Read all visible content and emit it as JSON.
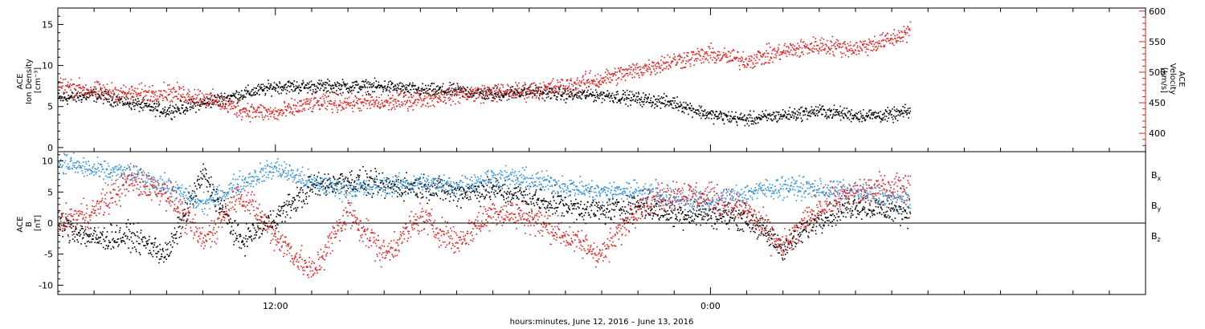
{
  "chart_data": [
    {
      "type": "scatter",
      "panel": "plasma",
      "x_unit": "hours after 00:00 June 12, 2016",
      "xlim": [
        6.0,
        36.0
      ],
      "left_axis": {
        "label_lines": [
          "ACE",
          "Ion Density",
          "[cm⁻³]"
        ],
        "ylim": [
          -0.5,
          17
        ],
        "ticks": [
          0,
          5,
          10,
          15
        ],
        "color": "#000000"
      },
      "right_axis": {
        "label_lines": [
          "ACE",
          "Velocity",
          "[km/s]"
        ],
        "ylim": [
          370,
          605
        ],
        "ticks": [
          400,
          450,
          500,
          550,
          600
        ],
        "color": "#e0201c"
      },
      "series": [
        {
          "color": "#000000",
          "axis": "left",
          "trend": [
            [
              6.0,
              6.0
            ],
            [
              7.0,
              6.5
            ],
            [
              8.0,
              5.5
            ],
            [
              9.0,
              4.5
            ],
            [
              10.0,
              5.5
            ],
            [
              11.0,
              6.5
            ],
            [
              12.0,
              7.5
            ],
            [
              13.0,
              7.5
            ],
            [
              14.0,
              7.5
            ],
            [
              15.0,
              7.5
            ],
            [
              16.0,
              7.0
            ],
            [
              17.0,
              7.0
            ],
            [
              18.0,
              6.5
            ],
            [
              19.0,
              7.0
            ],
            [
              20.0,
              6.5
            ],
            [
              21.0,
              6.5
            ],
            [
              22.0,
              6.0
            ],
            [
              23.0,
              5.5
            ],
            [
              24.0,
              4.0
            ],
            [
              25.0,
              3.5
            ],
            [
              26.0,
              4.0
            ],
            [
              27.0,
              4.5
            ],
            [
              28.0,
              4.0
            ],
            [
              29.0,
              4.0
            ],
            [
              29.5,
              4.5
            ]
          ],
          "spread": 1.2
        },
        {
          "color": "#e0201c",
          "axis": "right",
          "trend": [
            [
              6.0,
              480
            ],
            [
              7.0,
              470
            ],
            [
              8.0,
              465
            ],
            [
              9.0,
              468
            ],
            [
              10.0,
              460
            ],
            [
              11.0,
              440
            ],
            [
              12.0,
              433
            ],
            [
              13.0,
              450
            ],
            [
              14.0,
              452
            ],
            [
              15.0,
              450
            ],
            [
              16.0,
              458
            ],
            [
              17.0,
              465
            ],
            [
              18.0,
              468
            ],
            [
              19.0,
              470
            ],
            [
              20.0,
              478
            ],
            [
              21.0,
              490
            ],
            [
              22.0,
              505
            ],
            [
              23.0,
              520
            ],
            [
              24.0,
              530
            ],
            [
              25.0,
              520
            ],
            [
              26.0,
              535
            ],
            [
              27.0,
              545
            ],
            [
              28.0,
              540
            ],
            [
              29.0,
              555
            ],
            [
              29.5,
              570
            ]
          ],
          "spread": 22
        }
      ]
    },
    {
      "type": "scatter",
      "panel": "magnetic",
      "x_unit": "hours after 00:00 June 12, 2016",
      "xlim": [
        6.0,
        36.0
      ],
      "ylabel_lines": [
        "ACE",
        "B",
        "[nT]"
      ],
      "ylim": [
        -11.5,
        11.5
      ],
      "ticks": [
        -10,
        -5,
        0,
        5,
        10
      ],
      "zero_line": true,
      "series": [
        {
          "name_base": "B",
          "name_sub": "x",
          "color": "#000000",
          "trend": [
            [
              6.0,
              0.0
            ],
            [
              7.0,
              -2.5
            ],
            [
              8.0,
              -2.0
            ],
            [
              9.0,
              -5.0
            ],
            [
              10.0,
              8.0
            ],
            [
              11.0,
              -3.0
            ],
            [
              12.0,
              1.0
            ],
            [
              13.0,
              6.0
            ],
            [
              14.0,
              7.0
            ],
            [
              15.0,
              6.0
            ],
            [
              16.0,
              6.0
            ],
            [
              17.0,
              5.0
            ],
            [
              18.0,
              5.5
            ],
            [
              19.0,
              4.0
            ],
            [
              20.0,
              3.0
            ],
            [
              21.0,
              2.0
            ],
            [
              22.0,
              3.0
            ],
            [
              23.0,
              1.5
            ],
            [
              24.0,
              1.5
            ],
            [
              25.0,
              1.0
            ],
            [
              26.0,
              -4.0
            ],
            [
              27.0,
              1.0
            ],
            [
              28.0,
              3.0
            ],
            [
              29.0,
              2.0
            ],
            [
              29.5,
              2.0
            ]
          ],
          "spread": 3.0
        },
        {
          "name_base": "B",
          "name_sub": "y",
          "color": "#2f8fd8",
          "trend": [
            [
              6.0,
              10.0
            ],
            [
              7.0,
              8.5
            ],
            [
              8.0,
              8.0
            ],
            [
              9.0,
              6.0
            ],
            [
              10.0,
              3.0
            ],
            [
              11.0,
              6.5
            ],
            [
              12.0,
              9.0
            ],
            [
              13.0,
              6.5
            ],
            [
              14.0,
              5.5
            ],
            [
              15.0,
              6.0
            ],
            [
              16.0,
              6.5
            ],
            [
              17.0,
              6.0
            ],
            [
              18.0,
              7.5
            ],
            [
              19.0,
              7.0
            ],
            [
              20.0,
              6.0
            ],
            [
              21.0,
              5.0
            ],
            [
              22.0,
              5.5
            ],
            [
              23.0,
              4.0
            ],
            [
              24.0,
              3.5
            ],
            [
              25.0,
              5.0
            ],
            [
              26.0,
              6.0
            ],
            [
              27.0,
              5.5
            ],
            [
              28.0,
              5.0
            ],
            [
              29.0,
              4.0
            ],
            [
              29.5,
              4.0
            ]
          ],
          "spread": 2.5
        },
        {
          "name_base": "B",
          "name_sub": "z",
          "color": "#e0201c",
          "trend": [
            [
              6.0,
              0.0
            ],
            [
              7.0,
              2.0
            ],
            [
              8.0,
              7.0
            ],
            [
              9.0,
              5.0
            ],
            [
              10.0,
              -3.0
            ],
            [
              11.0,
              5.0
            ],
            [
              12.0,
              -2.0
            ],
            [
              13.0,
              -8.0
            ],
            [
              14.0,
              2.0
            ],
            [
              15.0,
              -5.0
            ],
            [
              16.0,
              1.0
            ],
            [
              17.0,
              -3.0
            ],
            [
              18.0,
              2.0
            ],
            [
              19.0,
              1.0
            ],
            [
              20.0,
              -2.0
            ],
            [
              21.0,
              -5.0
            ],
            [
              22.0,
              3.0
            ],
            [
              23.0,
              5.0
            ],
            [
              24.0,
              4.0
            ],
            [
              25.0,
              2.0
            ],
            [
              26.0,
              -4.0
            ],
            [
              27.0,
              3.0
            ],
            [
              28.0,
              5.0
            ],
            [
              29.0,
              6.0
            ],
            [
              29.5,
              6.0
            ]
          ],
          "spread": 3.5
        }
      ]
    }
  ],
  "x_axis": {
    "labeled_ticks": [
      {
        "hour": 12,
        "label": "12:00"
      },
      {
        "hour": 24,
        "label": "0:00"
      }
    ],
    "xlabel": "hours:minutes, June 12, 2016 – June 13, 2016"
  }
}
